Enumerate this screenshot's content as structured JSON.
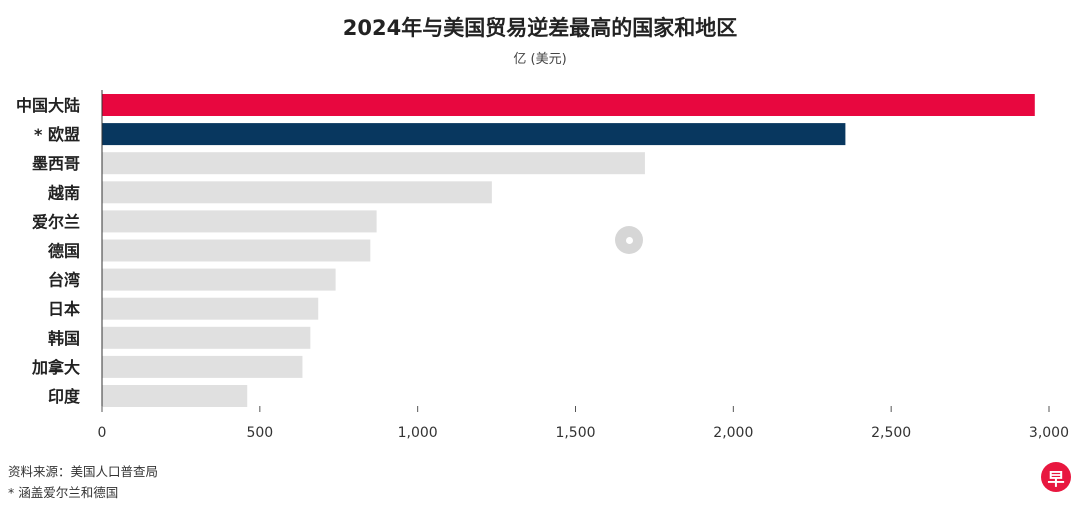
{
  "chart_data": {
    "type": "bar",
    "orientation": "horizontal",
    "title": "2024年与美国贸易逆差最高的国家和地区",
    "subtitle": "亿 (美元)",
    "categories": [
      "中国大陆",
      "* 欧盟",
      "墨西哥",
      "越南",
      "爱尔兰",
      "德国",
      "台湾",
      "日本",
      "韩国",
      "加拿大",
      "印度"
    ],
    "values": [
      2955,
      2355,
      1720,
      1235,
      870,
      850,
      740,
      685,
      660,
      635,
      460
    ],
    "bar_colors": [
      "#e8073f",
      "#08375f",
      "#e0e0e0",
      "#e0e0e0",
      "#e0e0e0",
      "#e0e0e0",
      "#e0e0e0",
      "#e0e0e0",
      "#e0e0e0",
      "#e0e0e0",
      "#e0e0e0"
    ],
    "xlim": [
      0,
      3000
    ],
    "xticks": [
      0,
      500,
      1000,
      1500,
      2000,
      2500,
      3000
    ],
    "xtick_labels": [
      "0",
      "500",
      "1,000",
      "1,500",
      "2,000",
      "2,500",
      "3,000"
    ],
    "grid": false
  },
  "footer": {
    "source": "资料来源：美国人口普查局",
    "note": "* 涵盖爱尔兰和德国"
  },
  "logo": {
    "glyph": "早",
    "color": "#e8173f"
  }
}
